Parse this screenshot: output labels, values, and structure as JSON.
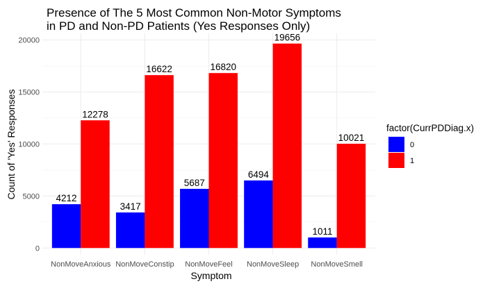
{
  "chart_data": {
    "type": "bar",
    "title_lines": [
      "Presence of The 5 Most Common Non-Motor Symptoms",
      "in PD and Non-PD Patients (Yes Responses Only)"
    ],
    "xlabel": "Symptom",
    "ylabel": "Count of 'Yes' Responses",
    "categories": [
      "NonMoveAnxious",
      "NonMoveConstip",
      "NonMoveFeel",
      "NonMoveSleep",
      "NonMoveSmell"
    ],
    "series": [
      {
        "name": "0",
        "color": "#0000ff",
        "values": [
          4212,
          3417,
          5687,
          6494,
          1011
        ]
      },
      {
        "name": "1",
        "color": "#ff0000",
        "values": [
          12278,
          16622,
          16820,
          19656,
          10021
        ]
      }
    ],
    "ylim": [
      -650,
      20640
    ],
    "yticks": [
      0,
      5000,
      10000,
      15000,
      20000
    ],
    "grid": true,
    "legend": {
      "title": "factor(CurrPDDiag.x)",
      "position": "right"
    }
  }
}
